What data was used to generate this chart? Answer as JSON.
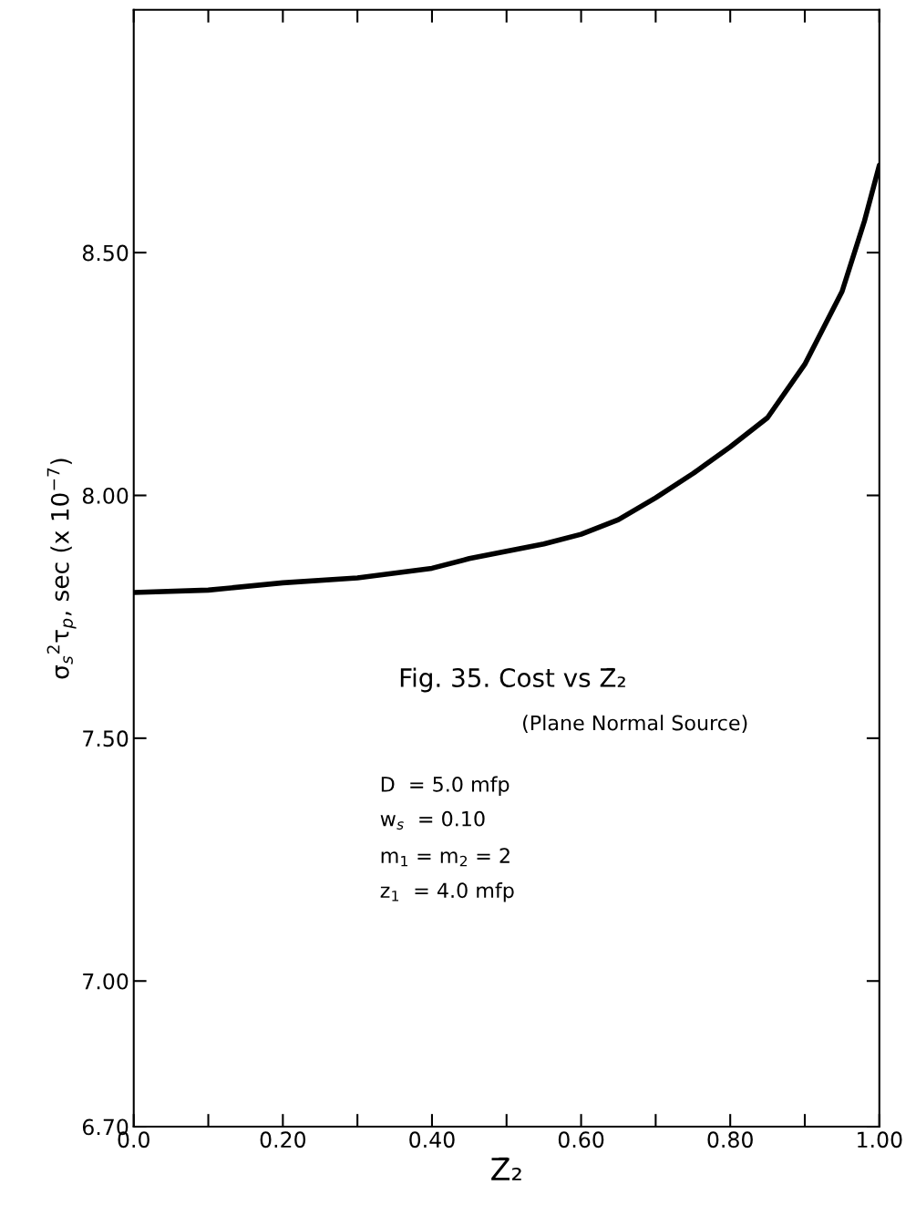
{
  "chart_data": {
    "type": "line",
    "xlabel": "Z̄₂",
    "ylabel": "σ$_{s}$$^{2}$τ$_{p}$, sec (x 10$^{−7}$)",
    "x": [
      0,
      0.1,
      0.2,
      0.3,
      0.4,
      0.45,
      0.5,
      0.55,
      0.6,
      0.65,
      0.7,
      0.75,
      0.8,
      0.85,
      0.9,
      0.95,
      0.98,
      1.0
    ],
    "series": [
      {
        "color": "#000000",
        "values": [
          7.8,
          7.805,
          7.82,
          7.83,
          7.85,
          7.87,
          7.885,
          7.9,
          7.92,
          7.95,
          7.995,
          8.045,
          8.1,
          8.16,
          8.27,
          8.42,
          8.565,
          8.68
        ]
      }
    ],
    "xlim": [
      0,
      1.0
    ],
    "xticks": [
      {
        "value": 0,
        "label": "0.0"
      },
      {
        "value": 0.1,
        "label": null
      },
      {
        "value": 0.2,
        "label": "0.20"
      },
      {
        "value": 0.3,
        "label": null
      },
      {
        "value": 0.4,
        "label": "0.40"
      },
      {
        "value": 0.5,
        "label": null
      },
      {
        "value": 0.6,
        "label": "0.60"
      },
      {
        "value": 0.7,
        "label": null
      },
      {
        "value": 0.8,
        "label": "0.80"
      },
      {
        "value": 0.9,
        "label": null
      },
      {
        "value": 1.0,
        "label": "1.00"
      }
    ],
    "ylim": [
      6.7,
      9.0
    ],
    "yticks": [
      {
        "value": 6.7,
        "label": "6.70"
      },
      {
        "value": 7.0,
        "label": "7.00"
      },
      {
        "value": 7.5,
        "label": "7.50"
      },
      {
        "value": 8.0,
        "label": "8.00"
      },
      {
        "value": 8.5,
        "label": "8.50"
      }
    ],
    "annotations": [
      "Fig. 35. Cost vs Z̄₂",
      "(Plane Normal Source)",
      "D  = 5.0 mfp",
      "w$_{s}$  = 0.10",
      "m$_{1}$ = m$_{2}$ = 2",
      "z$_{1}$  = 4.0 mfp"
    ],
    "grid": false,
    "legend": false,
    "marker": "none",
    "line_style": "solid"
  }
}
